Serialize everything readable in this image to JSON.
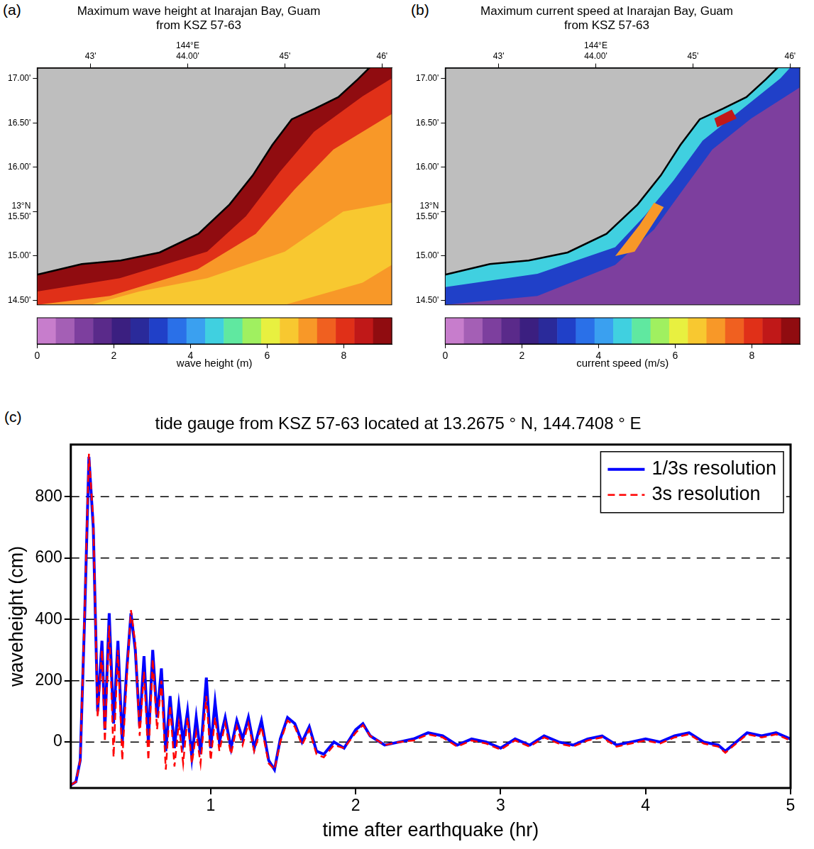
{
  "chart_data": [
    {
      "type": "map",
      "panel": "(a)",
      "title": [
        "Maximum wave height at Inarajan Bay, Guam",
        "from KSZ 57-63"
      ],
      "xlim": [
        42.45,
        46.1
      ],
      "ylim": [
        14.45,
        17.12
      ],
      "xticks": [
        {
          "value": 43,
          "label": "43'"
        },
        {
          "value": 44,
          "label": "144°E\n44.00'"
        },
        {
          "value": 45,
          "label": "45'"
        },
        {
          "value": 46,
          "label": "46'"
        }
      ],
      "yticks": [
        {
          "value": 14.5,
          "label": "14.50'"
        },
        {
          "value": 15,
          "label": "15.00'"
        },
        {
          "value": 15.5,
          "label": "13°N\n15.50'"
        },
        {
          "value": 16,
          "label": "16.00'"
        },
        {
          "value": 16.5,
          "label": "16.50'"
        },
        {
          "value": 17,
          "label": "17.00'"
        }
      ],
      "land": [
        [
          42.45,
          14.79
        ],
        [
          42.91,
          14.91
        ],
        [
          43.31,
          14.95
        ],
        [
          43.71,
          15.04
        ],
        [
          44.11,
          15.25
        ],
        [
          44.43,
          15.58
        ],
        [
          44.67,
          15.91
        ],
        [
          44.87,
          16.25
        ],
        [
          45.07,
          16.54
        ],
        [
          45.31,
          16.66
        ],
        [
          45.55,
          16.79
        ],
        [
          45.75,
          16.99
        ],
        [
          45.87,
          17.12
        ],
        [
          42.45,
          17.12
        ]
      ],
      "regions": [
        {
          "value": 7.2,
          "polygon": [
            [
              42.45,
              14.45
            ],
            [
              46.1,
              14.45
            ],
            [
              46.1,
              17.12
            ],
            [
              42.45,
              17.12
            ]
          ]
        },
        {
          "value": 6.5,
          "polygon": [
            [
              43.0,
              14.45
            ],
            [
              45.0,
              14.45
            ],
            [
              45.8,
              14.7
            ],
            [
              46.1,
              14.9
            ],
            [
              46.1,
              15.6
            ],
            [
              45.6,
              15.5
            ],
            [
              45.0,
              15.05
            ],
            [
              44.2,
              14.75
            ],
            [
              43.5,
              14.6
            ]
          ]
        },
        {
          "value": 8.2,
          "polygon": [
            [
              42.45,
              14.45
            ],
            [
              43.2,
              14.55
            ],
            [
              44.1,
              14.85
            ],
            [
              44.7,
              15.25
            ],
            [
              45.1,
              15.75
            ],
            [
              45.5,
              16.2
            ],
            [
              46.1,
              16.6
            ],
            [
              46.1,
              17.12
            ],
            [
              42.45,
              17.12
            ]
          ]
        },
        {
          "value": 9.0,
          "polygon": [
            [
              42.45,
              14.6
            ],
            [
              43.3,
              14.75
            ],
            [
              44.2,
              15.05
            ],
            [
              44.6,
              15.45
            ],
            [
              44.95,
              15.95
            ],
            [
              45.3,
              16.4
            ],
            [
              45.8,
              16.8
            ],
            [
              46.1,
              17.0
            ],
            [
              46.1,
              17.12
            ],
            [
              42.45,
              17.12
            ]
          ]
        }
      ],
      "colorbar_range": [
        0,
        9.25
      ],
      "colorbar_ticks": [
        0,
        2,
        4,
        6,
        8
      ],
      "colorbar_label": "wave height (m)",
      "colors": [
        "#c77dcc",
        "#a45fb5",
        "#7d3f9e",
        "#5a2a8a",
        "#3b1f80",
        "#2a2a9a",
        "#2040c8",
        "#2a70e8",
        "#3aa0f0",
        "#40d0e0",
        "#60e8a0",
        "#a0f060",
        "#e8f040",
        "#f8c830",
        "#f89828",
        "#f06020",
        "#e03018",
        "#c01818",
        "#900c10"
      ]
    },
    {
      "type": "map",
      "panel": "(b)",
      "title": [
        "Maximum current speed at Inarajan Bay, Guam",
        "from KSZ 57-63"
      ],
      "xlim": [
        42.45,
        46.1
      ],
      "ylim": [
        14.45,
        17.12
      ],
      "xticks": [
        {
          "value": 43,
          "label": "43'"
        },
        {
          "value": 44,
          "label": "144°E\n44.00'"
        },
        {
          "value": 45,
          "label": "45'"
        },
        {
          "value": 46,
          "label": "46'"
        }
      ],
      "yticks": [
        {
          "value": 14.5,
          "label": "14.50'"
        },
        {
          "value": 15,
          "label": "15.00'"
        },
        {
          "value": 15.5,
          "label": "13°N\n15.50'"
        },
        {
          "value": 16,
          "label": "16.00'"
        },
        {
          "value": 16.5,
          "label": "16.50'"
        },
        {
          "value": 17,
          "label": "17.00'"
        }
      ],
      "land": [
        [
          42.45,
          14.79
        ],
        [
          42.91,
          14.91
        ],
        [
          43.31,
          14.95
        ],
        [
          43.71,
          15.04
        ],
        [
          44.11,
          15.25
        ],
        [
          44.43,
          15.58
        ],
        [
          44.67,
          15.91
        ],
        [
          44.87,
          16.25
        ],
        [
          45.07,
          16.54
        ],
        [
          45.31,
          16.66
        ],
        [
          45.55,
          16.79
        ],
        [
          45.75,
          16.99
        ],
        [
          45.87,
          17.12
        ],
        [
          42.45,
          17.12
        ]
      ],
      "regions": [
        {
          "value": 1.0,
          "polygon": [
            [
              42.45,
              14.45
            ],
            [
              46.1,
              14.45
            ],
            [
              46.1,
              17.12
            ],
            [
              42.45,
              17.12
            ]
          ]
        },
        {
          "value": 3.0,
          "polygon": [
            [
              42.45,
              14.45
            ],
            [
              43.4,
              14.55
            ],
            [
              44.2,
              14.9
            ],
            [
              44.6,
              15.3
            ],
            [
              44.9,
              15.75
            ],
            [
              45.2,
              16.2
            ],
            [
              45.6,
              16.55
            ],
            [
              46.1,
              16.9
            ],
            [
              46.1,
              17.12
            ],
            [
              42.45,
              17.12
            ]
          ]
        },
        {
          "value": 4.6,
          "polygon": [
            [
              42.45,
              14.65
            ],
            [
              43.4,
              14.8
            ],
            [
              44.2,
              15.1
            ],
            [
              44.5,
              15.45
            ],
            [
              44.8,
              15.85
            ],
            [
              45.1,
              16.3
            ],
            [
              45.5,
              16.65
            ],
            [
              45.9,
              17.0
            ],
            [
              46.0,
              17.12
            ],
            [
              42.45,
              17.12
            ]
          ]
        },
        {
          "value": 7.0,
          "polygon": [
            [
              44.2,
              15.0
            ],
            [
              44.4,
              15.05
            ],
            [
              44.55,
              15.3
            ],
            [
              44.7,
              15.55
            ],
            [
              44.6,
              15.6
            ],
            [
              44.45,
              15.35
            ]
          ]
        },
        {
          "value": 8.5,
          "polygon": [
            [
              45.25,
              16.45
            ],
            [
              45.45,
              16.55
            ],
            [
              45.4,
              16.65
            ],
            [
              45.22,
              16.55
            ]
          ]
        }
      ],
      "colorbar_range": [
        0,
        9.25
      ],
      "colorbar_ticks": [
        0,
        2,
        4,
        6,
        8
      ],
      "colorbar_label": "current speed (m/s)",
      "colors": [
        "#c77dcc",
        "#a45fb5",
        "#7d3f9e",
        "#5a2a8a",
        "#3b1f80",
        "#2a2a9a",
        "#2040c8",
        "#2a70e8",
        "#3aa0f0",
        "#40d0e0",
        "#60e8a0",
        "#a0f060",
        "#e8f040",
        "#f8c830",
        "#f89828",
        "#f06020",
        "#e03018",
        "#c01818",
        "#900c10"
      ]
    },
    {
      "type": "line",
      "panel": "(c)",
      "title": "tide gauge from KSZ 57-63 located at 13.2675 ° N, 144.7408 ° E",
      "xlabel": "time after earthquake (hr)",
      "ylabel": "waveheight (cm)",
      "xlim": [
        0.035,
        5
      ],
      "ylim": [
        -150,
        970
      ],
      "xticks": [
        1,
        2,
        3,
        4,
        5
      ],
      "yticks": [
        0,
        200,
        400,
        600,
        800
      ],
      "grid": "y",
      "legend": "upper right",
      "x": [
        0.035,
        0.07,
        0.1,
        0.13,
        0.16,
        0.19,
        0.22,
        0.25,
        0.27,
        0.3,
        0.33,
        0.36,
        0.39,
        0.42,
        0.45,
        0.48,
        0.51,
        0.54,
        0.57,
        0.6,
        0.63,
        0.66,
        0.69,
        0.72,
        0.75,
        0.78,
        0.81,
        0.84,
        0.87,
        0.9,
        0.93,
        0.97,
        1.0,
        1.03,
        1.06,
        1.1,
        1.14,
        1.18,
        1.22,
        1.26,
        1.3,
        1.35,
        1.4,
        1.44,
        1.48,
        1.53,
        1.58,
        1.63,
        1.68,
        1.73,
        1.78,
        1.85,
        1.92,
        2.0,
        2.05,
        2.1,
        2.2,
        2.3,
        2.4,
        2.5,
        2.6,
        2.7,
        2.8,
        2.9,
        3.0,
        3.1,
        3.2,
        3.3,
        3.4,
        3.5,
        3.6,
        3.7,
        3.8,
        3.9,
        4.0,
        4.1,
        4.2,
        4.3,
        4.4,
        4.5,
        4.55,
        4.6,
        4.7,
        4.8,
        4.9,
        5.0
      ],
      "series": [
        {
          "name": "1/3s resolution",
          "color": "#0000ff",
          "line_style": "solid",
          "values": [
            -140,
            -130,
            -60,
            400,
            930,
            700,
            100,
            330,
            40,
            420,
            60,
            330,
            0,
            230,
            420,
            300,
            50,
            280,
            0,
            300,
            80,
            240,
            -30,
            150,
            -20,
            120,
            0,
            100,
            -50,
            80,
            -40,
            210,
            -20,
            130,
            0,
            80,
            -20,
            70,
            10,
            80,
            -20,
            70,
            -60,
            -90,
            10,
            80,
            60,
            0,
            50,
            -30,
            -40,
            0,
            -20,
            40,
            60,
            20,
            -10,
            0,
            10,
            30,
            20,
            -10,
            10,
            0,
            -20,
            10,
            -10,
            20,
            0,
            -10,
            10,
            20,
            -10,
            0,
            10,
            0,
            20,
            30,
            0,
            -10,
            -30,
            -10,
            30,
            20,
            30,
            10
          ]
        },
        {
          "name": "3s resolution",
          "color": "#ff0000",
          "line_style": "dashed",
          "values": [
            -140,
            -130,
            -60,
            420,
            940,
            720,
            80,
            300,
            0,
            380,
            -50,
            300,
            -60,
            200,
            430,
            320,
            20,
            230,
            -60,
            270,
            40,
            200,
            -90,
            120,
            -80,
            60,
            -70,
            80,
            -70,
            30,
            -70,
            150,
            -60,
            80,
            -30,
            60,
            -40,
            50,
            -10,
            60,
            -30,
            50,
            -70,
            -90,
            0,
            70,
            50,
            -10,
            40,
            -40,
            -50,
            -10,
            -20,
            30,
            55,
            20,
            -10,
            0,
            5,
            25,
            15,
            -15,
            5,
            -5,
            -25,
            5,
            -15,
            15,
            -5,
            -15,
            5,
            15,
            -15,
            -5,
            5,
            -5,
            15,
            25,
            -5,
            -15,
            -35,
            -15,
            25,
            15,
            25,
            5
          ]
        }
      ]
    }
  ]
}
